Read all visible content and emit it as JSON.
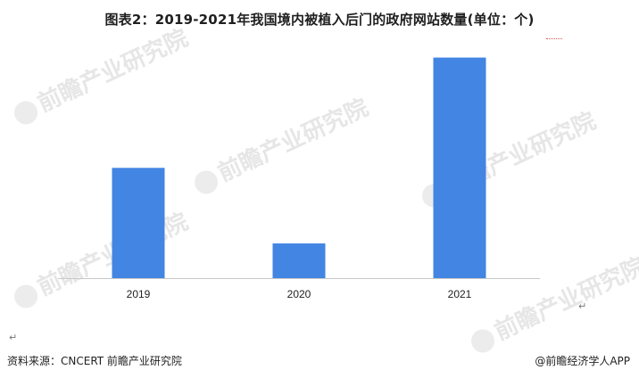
{
  "title": "图表2：2019-2021年我国境内被植入后门的政府网站数量(单位：个)",
  "watermark_text": "前瞻产业研究院",
  "source_text": "资料来源：CNCERT 前瞻产业研究院",
  "brand_text": "@前瞻经济学人APP",
  "para_mark": "↵",
  "chart_data": {
    "type": "bar",
    "title": "图表2：2019-2021年我国境内被植入后门的政府网站数量(单位：个)",
    "categories": [
      "2019",
      "2020",
      "2021"
    ],
    "values": [
      540,
      170,
      1080
    ],
    "xlabel": "",
    "ylabel": "",
    "ylim": [
      0,
      1100
    ],
    "grid": false,
    "bar_color": "#4285E3"
  }
}
